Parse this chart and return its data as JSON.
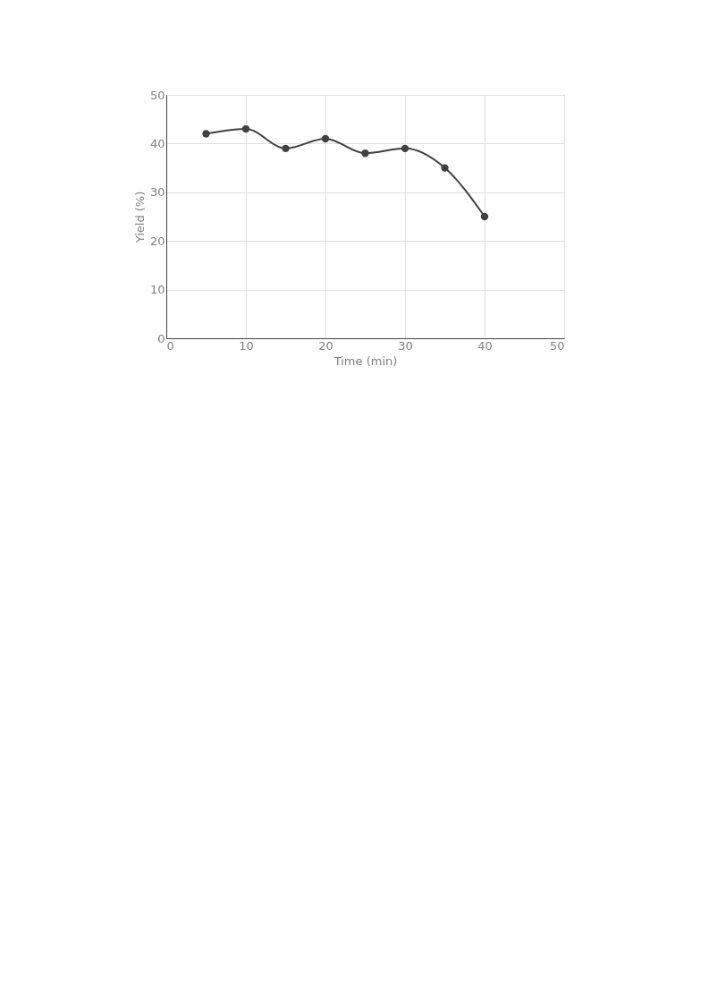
{
  "chart_data": {
    "type": "line",
    "xlabel": "Time (min)",
    "ylabel": "Yield (%)",
    "x": [
      5,
      10,
      15,
      20,
      25,
      30,
      35,
      40
    ],
    "series": [
      {
        "color": "#404040",
        "values": [
          42,
          43,
          39,
          41,
          38,
          39,
          35,
          25
        ]
      }
    ],
    "xlim": [
      0,
      50
    ],
    "xticks": [
      0,
      10,
      20,
      30,
      40,
      50
    ],
    "ylim": [
      0,
      50
    ],
    "yticks": [
      0,
      10,
      20,
      30,
      40,
      50
    ],
    "grid": true,
    "marker": "circle",
    "line_style": "solid"
  }
}
